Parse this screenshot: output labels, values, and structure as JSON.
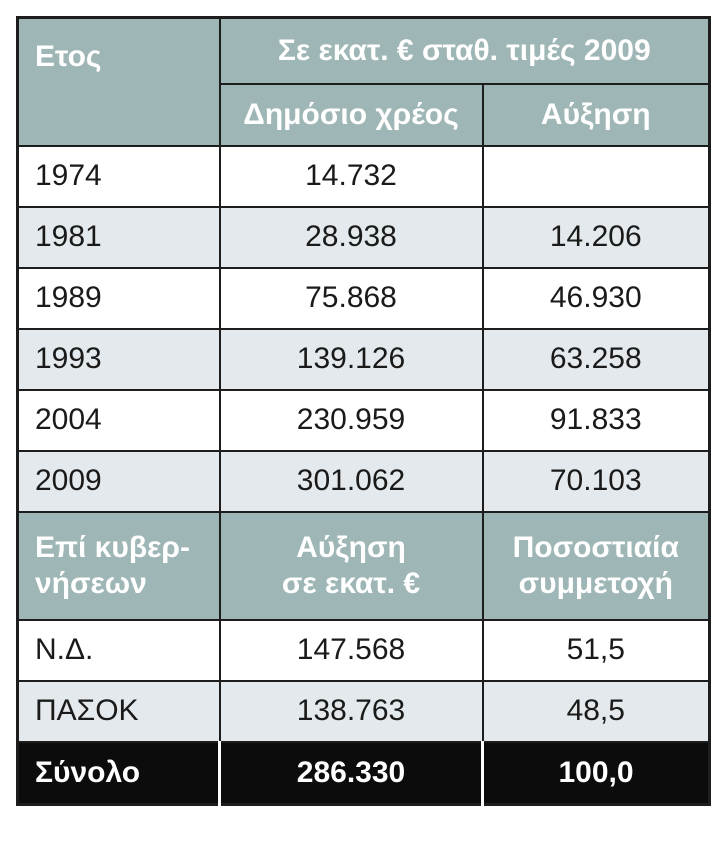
{
  "header": {
    "year_label": "Ετος",
    "group_label": "Σε εκατ. € σταθ. τιμές 2009",
    "columns": [
      "Δημόσιο χρέος",
      "Αύξηση"
    ]
  },
  "rows": [
    [
      "1974",
      "14.732"
    ],
    [
      "1981",
      "28.938",
      "14.206"
    ],
    [
      "1989",
      "75.868",
      "46.930"
    ],
    [
      "1993",
      "139.126",
      "63.258"
    ],
    [
      "2004",
      "230.959",
      "91.833"
    ],
    [
      "2009",
      "301.062",
      "70.103"
    ]
  ],
  "subheader": [
    [
      "Επί κυβερ-",
      "νήσεων"
    ],
    [
      "Αύξηση",
      "σε εκατ. €"
    ],
    [
      "Ποσοστιαία",
      "συμμετοχή"
    ]
  ],
  "gov_rows": [
    [
      "Ν.Δ.",
      "147.568",
      "51,5"
    ],
    [
      "ΠΑΣΟΚ",
      "138.763",
      "48,5"
    ]
  ],
  "total": [
    "Σύνολο",
    "286.330",
    "100,0"
  ]
}
